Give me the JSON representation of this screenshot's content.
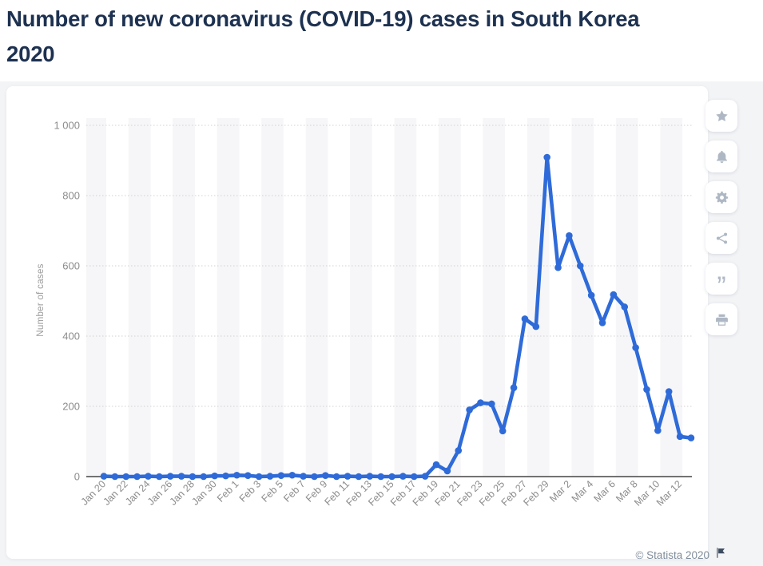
{
  "page": {
    "title_lines": [
      "Number of new coronavirus (COVID-19) cases in South Korea",
      "2020"
    ]
  },
  "toolbar": {
    "icons": [
      "star-icon",
      "bell-icon",
      "gear-icon",
      "share-icon",
      "quote-icon",
      "printer-icon"
    ]
  },
  "footer": {
    "copyright": "© Statista 2020",
    "flag_icon": "flag-icon",
    "flag_color": "#3d4b5e"
  },
  "chart_data": {
    "type": "line",
    "title": "Number of new coronavirus (COVID-19) cases in South Korea 2020",
    "xlabel": "",
    "ylabel": "Number of cases",
    "ylim": [
      0,
      1000
    ],
    "yticks": [
      0,
      200,
      400,
      600,
      800,
      1000
    ],
    "ytick_labels": [
      "0",
      "200",
      "400",
      "600",
      "800",
      "1 000"
    ],
    "x_tick_every": 2,
    "grid": "horizontal-dotted",
    "plot_band_colors": [
      "#f6f6f8",
      "#ffffff"
    ],
    "line_color": "#2f6bd8",
    "marker": "circle",
    "legend": "none",
    "x": [
      "Jan 20",
      "Jan 21",
      "Jan 22",
      "Jan 23",
      "Jan 24",
      "Jan 25",
      "Jan 26",
      "Jan 27",
      "Jan 28",
      "Jan 29",
      "Jan 30",
      "Jan 31",
      "Feb 1",
      "Feb 2",
      "Feb 3",
      "Feb 4",
      "Feb 5",
      "Feb 6",
      "Feb 7",
      "Feb 8",
      "Feb 9",
      "Feb 10",
      "Feb 11",
      "Feb 12",
      "Feb 13",
      "Feb 14",
      "Feb 15",
      "Feb 16",
      "Feb 17",
      "Feb 18",
      "Feb 19",
      "Feb 20",
      "Feb 21",
      "Feb 22",
      "Feb 23",
      "Feb 24",
      "Feb 25",
      "Feb 26",
      "Feb 27",
      "Feb 28",
      "Feb 29",
      "Mar 1",
      "Mar 2",
      "Mar 3",
      "Mar 4",
      "Mar 5",
      "Mar 6",
      "Mar 7",
      "Mar 8",
      "Mar 9",
      "Mar 10",
      "Mar 11",
      "Mar 12",
      "Mar 13"
    ],
    "values": [
      1,
      0,
      0,
      0,
      1,
      0,
      1,
      1,
      0,
      0,
      2,
      2,
      4,
      3,
      0,
      1,
      3,
      4,
      1,
      0,
      3,
      0,
      1,
      0,
      1,
      0,
      0,
      1,
      0,
      1,
      34,
      16,
      74,
      190,
      210,
      207,
      130,
      253,
      449,
      427,
      909,
      595,
      686,
      600,
      516,
      438,
      518,
      483,
      367,
      248,
      131,
      242,
      114,
      110
    ]
  }
}
